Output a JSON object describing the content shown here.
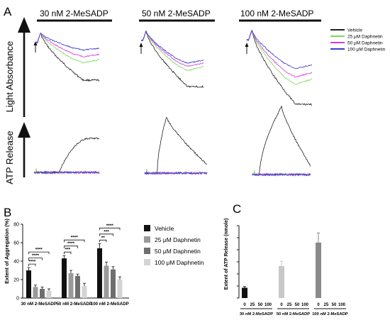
{
  "panels": {
    "a_label": "A",
    "b_label": "B",
    "c_label": "C",
    "left_axis_top": "Light Absorbance",
    "left_axis_bottom": "ATP Release",
    "conditions": [
      "30 nM 2-MeSADP",
      "50 nM 2-MeSADP",
      "100 nM 2-MeSADP"
    ],
    "trace_legend": [
      "Vehicle",
      "25 μM Daphnetin",
      "50 μM Daphnetin",
      "100 μM Daphnetin"
    ]
  },
  "colors": {
    "vehicle": "#222222",
    "d25": "#7ed957",
    "d50": "#d63bd6",
    "d100": "#3a3ad6",
    "bar_vehicle": "#111111",
    "bar_25": "#9a9a9a",
    "bar_50": "#6e6e6e",
    "bar_100": "#d4d4d4"
  },
  "chart_data": [
    {
      "type": "bar",
      "panel": "B",
      "ylabel": "Extent of Aggregation (%)",
      "ylim": [
        0,
        80
      ],
      "yticks": [
        0,
        20,
        40,
        60,
        80
      ],
      "categories": [
        "30 nM 2-MeSADP",
        "50 nM 2-MeSADP",
        "100 nM 2-MeSADP"
      ],
      "series": [
        {
          "name": "Vehicle",
          "values": [
            30,
            43,
            54
          ],
          "errors": [
            3,
            3,
            5
          ]
        },
        {
          "name": "25 μM Daphnetin",
          "values": [
            12,
            27,
            35
          ],
          "errors": [
            2,
            3,
            4
          ]
        },
        {
          "name": "50 μM Daphnetin",
          "values": [
            10,
            24,
            31
          ],
          "errors": [
            2,
            2,
            3
          ]
        },
        {
          "name": "100 μM Daphnetin",
          "values": [
            8,
            13,
            20
          ],
          "errors": [
            2,
            3,
            3
          ]
        }
      ],
      "significance": "****",
      "annotations": [
        {
          "category": 0,
          "from": 0,
          "to": 1,
          "label": "****"
        },
        {
          "category": 0,
          "from": 0,
          "to": 2,
          "label": "****"
        },
        {
          "category": 0,
          "from": 0,
          "to": 3,
          "label": "****"
        },
        {
          "category": 1,
          "from": 0,
          "to": 1,
          "label": "***"
        },
        {
          "category": 1,
          "from": 0,
          "to": 2,
          "label": "****"
        },
        {
          "category": 1,
          "from": 0,
          "to": 3,
          "label": "****"
        },
        {
          "category": 2,
          "from": 0,
          "to": 1,
          "label": "**"
        },
        {
          "category": 2,
          "from": 0,
          "to": 2,
          "label": "***"
        },
        {
          "category": 2,
          "from": 0,
          "to": 3,
          "label": "****"
        }
      ],
      "legend": [
        "Vehicle",
        "25 μM Daphnetin",
        "50 μM Daphnetin",
        "100 μM Daphnetin"
      ],
      "legend_position": "right"
    },
    {
      "type": "bar",
      "panel": "C",
      "ylabel": "Extent of ATP Release (nmole)",
      "ylim": [
        0,
        0.12
      ],
      "yticks": [
        0,
        0.02,
        0.04,
        0.06,
        0.08,
        0.1,
        0.12
      ],
      "ytick_labels": [],
      "categories": [
        "30 nM 2-MeSADP",
        "50 nM 2-MeSADP",
        "100 nM 2-MeSADP"
      ],
      "sub_labels": [
        "0",
        "25",
        "50",
        "100"
      ],
      "series": [
        {
          "name": "Vehicle",
          "values": [
            0.017,
            0.053,
            0.092
          ],
          "errors": [
            0.002,
            0.008,
            0.016
          ]
        },
        {
          "name": "25 μM Daphnetin",
          "values": [
            0,
            0,
            0
          ],
          "errors": [
            0,
            0,
            0
          ]
        },
        {
          "name": "50 μM Daphnetin",
          "values": [
            0,
            0,
            0
          ],
          "errors": [
            0,
            0,
            0
          ]
        },
        {
          "name": "100 μM Daphnetin",
          "values": [
            0,
            0,
            0
          ],
          "errors": [
            0,
            0,
            0
          ]
        }
      ]
    }
  ]
}
